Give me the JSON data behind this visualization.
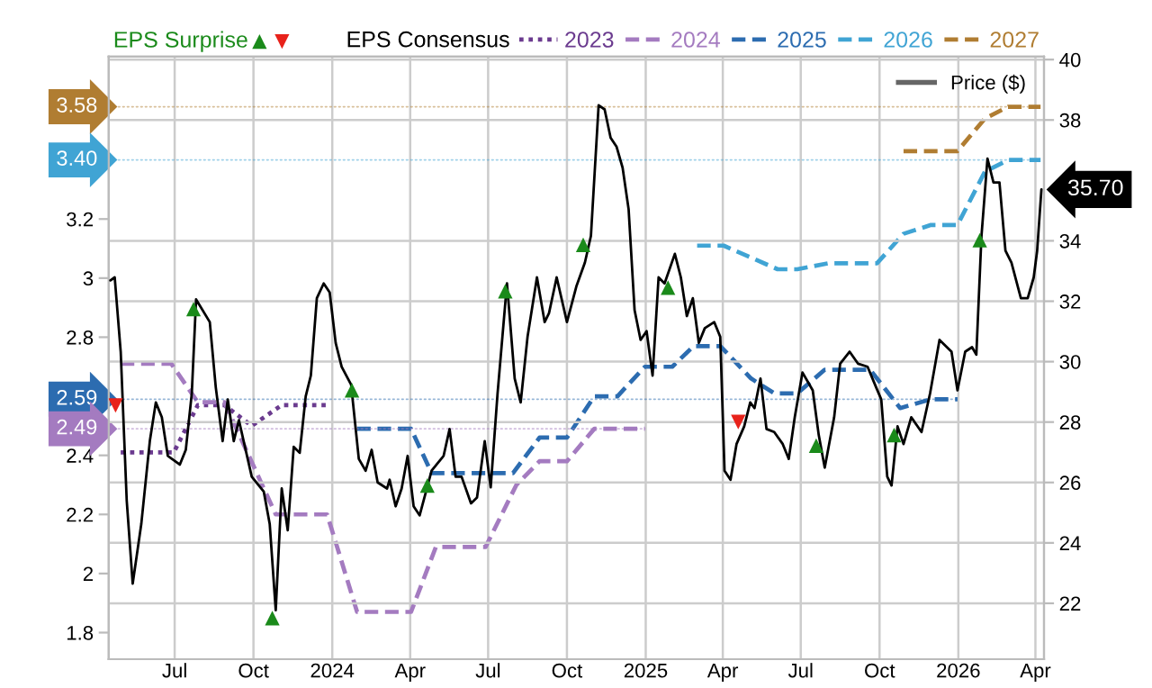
{
  "chart_data": {
    "type": "line",
    "legend_title": "EPS Consensus",
    "xlim": [
      "2023-04-15",
      "2026-04-11"
    ],
    "xticks": [
      {
        "value": "2023-07-01",
        "label": "Jul"
      },
      {
        "value": "2023-10-01",
        "label": "Oct"
      },
      {
        "value": "2024-01-01",
        "label": "2024"
      },
      {
        "value": "2024-04-01",
        "label": "Apr"
      },
      {
        "value": "2024-07-01",
        "label": "Jul"
      },
      {
        "value": "2024-10-01",
        "label": "Oct"
      },
      {
        "value": "2025-01-01",
        "label": "2025"
      },
      {
        "value": "2025-04-01",
        "label": "Apr"
      },
      {
        "value": "2025-07-01",
        "label": "Jul"
      },
      {
        "value": "2025-10-01",
        "label": "Oct"
      },
      {
        "value": "2026-01-01",
        "label": "2026"
      },
      {
        "value": "2026-04-01",
        "label": "Apr"
      }
    ],
    "ylim": [
      1.71,
      3.75
    ],
    "yticks": [
      1.8,
      2,
      2.2,
      2.4,
      2.8,
      3,
      3.2
    ],
    "y2lim": [
      20.15,
      40.1
    ],
    "y2ticks": [
      22,
      24,
      26,
      28,
      30,
      32,
      34,
      38,
      40
    ],
    "grid": true,
    "legend": "top",
    "series": [
      {
        "name": "2023",
        "color": "#6b3b8f",
        "line_style": "dotted",
        "x": [
          "2023-04-29",
          "2023-06-30",
          "2023-07-28",
          "2023-08-28",
          "2023-09-29",
          "2023-11-03",
          "2023-12-26"
        ],
        "values": [
          2.41,
          2.41,
          2.57,
          2.57,
          2.5,
          2.57,
          2.57
        ]
      },
      {
        "name": "2024",
        "color": "#a47bc0",
        "line_style": "dashed",
        "x": [
          "2023-04-29",
          "2023-06-27",
          "2023-07-28",
          "2023-08-28",
          "2023-10-27",
          "2023-12-26",
          "2024-01-30",
          "2024-04-02",
          "2024-05-01",
          "2024-06-28",
          "2024-08-03",
          "2024-08-30",
          "2024-10-01",
          "2024-11-02",
          "2024-12-31"
        ],
        "values": [
          2.71,
          2.71,
          2.58,
          2.58,
          2.2,
          2.2,
          1.87,
          1.87,
          2.09,
          2.09,
          2.3,
          2.38,
          2.38,
          2.49,
          2.49
        ]
      },
      {
        "name": "2025",
        "color": "#2c6cb0",
        "line_style": "dashed",
        "x": [
          "2024-01-30",
          "2024-04-02",
          "2024-04-26",
          "2024-07-30",
          "2024-08-30",
          "2024-10-01",
          "2024-11-02",
          "2024-11-29",
          "2024-12-31",
          "2025-02-01",
          "2025-02-26",
          "2025-03-29",
          "2025-05-04",
          "2025-05-31",
          "2025-06-27",
          "2025-07-29",
          "2025-09-20",
          "2025-10-25",
          "2025-11-30",
          "2025-12-31"
        ],
        "values": [
          2.49,
          2.49,
          2.34,
          2.34,
          2.46,
          2.46,
          2.6,
          2.6,
          2.7,
          2.7,
          2.77,
          2.77,
          2.66,
          2.61,
          2.61,
          2.69,
          2.69,
          2.56,
          2.59,
          2.59
        ]
      },
      {
        "name": "2026",
        "color": "#40a4d4",
        "line_style": "dashed",
        "x": [
          "2025-03-02",
          "2025-04-02",
          "2025-06-04",
          "2025-06-27",
          "2025-08-02",
          "2025-09-28",
          "2025-10-29",
          "2025-11-30",
          "2025-12-31",
          "2026-02-01",
          "2026-02-28",
          "2026-04-07"
        ],
        "values": [
          3.11,
          3.11,
          3.03,
          3.03,
          3.05,
          3.05,
          3.15,
          3.18,
          3.18,
          3.36,
          3.4,
          3.4
        ]
      },
      {
        "name": "2027",
        "color": "#b07d32",
        "line_style": "dashed",
        "x": [
          "2025-10-29",
          "2025-12-31",
          "2026-02-01",
          "2026-02-28",
          "2026-04-07"
        ],
        "values": [
          3.43,
          3.43,
          3.54,
          3.58,
          3.58
        ]
      },
      {
        "name": "Price ($)",
        "color": "#000000",
        "line_style": "solid",
        "axis": "y2",
        "x": [
          "2023-04-17",
          "2023-04-22",
          "2023-04-29",
          "2023-05-06",
          "2023-05-13",
          "2023-05-23",
          "2023-06-02",
          "2023-06-09",
          "2023-06-16",
          "2023-06-23",
          "2023-07-07",
          "2023-07-14",
          "2023-07-21",
          "2023-07-26",
          "2023-08-11",
          "2023-08-18",
          "2023-08-26",
          "2023-09-01",
          "2023-09-08",
          "2023-09-14",
          "2023-09-29",
          "2023-10-13",
          "2023-10-20",
          "2023-10-27",
          "2023-11-03",
          "2023-11-10",
          "2023-11-17",
          "2023-11-24",
          "2023-12-01",
          "2023-12-07",
          "2023-12-14",
          "2023-12-22",
          "2023-12-29",
          "2024-01-05",
          "2024-01-12",
          "2024-01-23",
          "2024-02-01",
          "2024-02-09",
          "2024-02-16",
          "2024-02-23",
          "2024-03-05",
          "2024-03-08",
          "2024-03-15",
          "2024-03-22",
          "2024-03-29",
          "2024-04-05",
          "2024-04-12",
          "2024-04-26",
          "2024-05-10",
          "2024-05-17",
          "2024-05-24",
          "2024-05-31",
          "2024-06-11",
          "2024-06-18",
          "2024-06-27",
          "2024-07-04",
          "2024-07-12",
          "2024-07-23",
          "2024-08-01",
          "2024-08-08",
          "2024-08-16",
          "2024-08-27",
          "2024-09-05",
          "2024-09-10",
          "2024-09-19",
          "2024-10-01",
          "2024-10-12",
          "2024-10-22",
          "2024-10-29",
          "2024-11-07",
          "2024-11-14",
          "2024-11-21",
          "2024-11-28",
          "2024-12-05",
          "2024-12-12",
          "2024-12-19",
          "2024-12-26",
          "2025-01-02",
          "2025-01-09",
          "2025-01-16",
          "2025-01-23",
          "2025-02-04",
          "2025-02-11",
          "2025-02-18",
          "2025-02-25",
          "2025-03-04",
          "2025-03-11",
          "2025-03-22",
          "2025-03-29",
          "2025-04-03",
          "2025-04-10",
          "2025-04-17",
          "2025-04-26",
          "2025-05-03",
          "2025-05-08",
          "2025-05-15",
          "2025-05-22",
          "2025-05-31",
          "2025-06-10",
          "2025-06-17",
          "2025-06-24",
          "2025-07-03",
          "2025-07-15",
          "2025-07-22",
          "2025-07-29",
          "2025-08-09",
          "2025-08-16",
          "2025-08-27",
          "2025-09-06",
          "2025-09-17",
          "2025-09-27",
          "2025-10-03",
          "2025-10-10",
          "2025-10-15",
          "2025-10-22",
          "2025-10-29",
          "2025-11-07",
          "2025-11-19",
          "2025-11-29",
          "2025-12-10",
          "2025-12-24",
          "2025-12-31",
          "2026-01-09",
          "2026-01-17",
          "2026-01-22",
          "2026-01-28",
          "2026-02-04",
          "2026-02-11",
          "2026-02-18",
          "2026-02-25",
          "2026-03-04",
          "2026-03-15",
          "2026-03-23",
          "2026-03-30",
          "2026-04-03",
          "2026-04-08"
        ],
        "values": [
          32.69,
          32.79,
          30.33,
          25.41,
          22.65,
          24.62,
          27.37,
          28.65,
          28.16,
          26.88,
          26.59,
          27.08,
          28.95,
          32.06,
          31.31,
          29.15,
          27.37,
          28.75,
          27.37,
          28.06,
          26.19,
          25.7,
          24.62,
          21.77,
          25.8,
          24.42,
          27.18,
          26.98,
          28.85,
          29.54,
          32.1,
          32.59,
          32.29,
          30.62,
          29.83,
          29.24,
          26.78,
          26.39,
          27.08,
          26.0,
          25.8,
          26.09,
          25.21,
          25.8,
          26.88,
          25.21,
          24.91,
          26.39,
          26.88,
          27.77,
          26.19,
          26.19,
          25.31,
          25.5,
          27.37,
          25.84,
          28.95,
          32.59,
          29.44,
          28.65,
          30.82,
          32.79,
          31.31,
          31.6,
          32.79,
          31.31,
          32.49,
          33.28,
          34.16,
          38.49,
          38.35,
          37.41,
          37.11,
          36.42,
          35.05,
          31.7,
          30.72,
          31.01,
          29.54,
          32.79,
          32.59,
          33.57,
          32.79,
          31.51,
          32.1,
          30.62,
          31.11,
          31.31,
          30.82,
          26.39,
          26.09,
          27.27,
          27.86,
          28.65,
          28.46,
          29.44,
          27.77,
          27.67,
          27.27,
          26.78,
          28.16,
          29.64,
          29.05,
          27.57,
          26.49,
          28.16,
          29.93,
          30.33,
          29.93,
          29.83,
          29.15,
          28.75,
          26.19,
          25.9,
          27.86,
          27.27,
          28.16,
          27.67,
          28.95,
          30.72,
          30.33,
          29.05,
          30.33,
          30.48,
          30.23,
          34.16,
          36.72,
          35.93,
          35.93,
          33.67,
          33.28,
          32.1,
          32.1,
          32.79,
          33.67,
          35.7
        ],
        "value_labels": [
          null,
          null,
          null,
          null,
          null,
          null,
          null,
          null,
          null,
          null,
          null,
          null,
          null,
          null,
          null,
          null,
          null,
          null,
          null,
          null,
          null,
          null,
          null,
          null,
          null,
          null,
          null,
          null,
          null,
          null,
          null,
          null,
          null,
          null,
          null,
          null,
          null,
          null,
          null,
          null,
          null,
          null,
          null,
          null,
          null,
          null,
          null,
          null,
          null,
          null,
          null,
          null,
          null,
          null,
          null,
          null,
          null,
          null,
          null,
          null,
          null,
          null,
          null,
          null,
          null,
          null,
          null,
          null,
          null,
          null,
          null,
          null,
          null,
          null,
          null,
          null,
          null,
          null,
          null,
          null,
          null,
          null,
          null,
          null,
          null,
          null,
          null,
          null,
          null,
          null,
          null,
          null,
          null,
          null,
          null,
          null,
          null,
          null,
          null,
          null,
          null,
          null,
          null,
          null,
          null,
          null,
          null,
          null,
          null,
          null,
          null,
          null,
          null,
          null,
          null,
          null,
          null,
          null,
          null,
          null,
          null,
          null,
          null,
          null,
          null,
          null,
          null,
          null,
          null,
          null,
          null,
          null,
          null,
          null,
          null,
          "35.70"
        ]
      },
      {
        "name": "EPS Surprise",
        "type": "scatter",
        "marker": "triangle",
        "color": "#1a8a1a",
        "axis": "y2",
        "x": [
          "2023-07-23",
          "2023-10-23",
          "2024-01-24",
          "2024-04-21",
          "2024-07-21",
          "2024-10-20",
          "2025-01-27",
          "2025-07-19",
          "2025-10-18",
          "2026-01-26"
        ],
        "values": [
          31.74,
          21.51,
          29.05,
          25.9,
          32.33,
          33.87,
          32.45,
          27.22,
          27.57,
          34.02
        ]
      },
      {
        "type": "scatter",
        "marker": "triangle",
        "color": "#e8221b",
        "axis": "y2",
        "x": [
          "2023-04-23",
          "2025-04-19"
        ],
        "values": [
          28.55,
          28.0
        ]
      }
    ],
    "annotations": [
      {
        "text": "3.58",
        "x": "2026-04-07",
        "y": 3.58
      },
      {
        "text": "3.40",
        "x": "2026-04-07",
        "y": 3.4
      },
      {
        "text": "2.59",
        "x": "2025-12-31",
        "y": 2.59
      },
      {
        "text": "2.49",
        "x": "2024-12-31",
        "y": 2.49
      }
    ]
  }
}
